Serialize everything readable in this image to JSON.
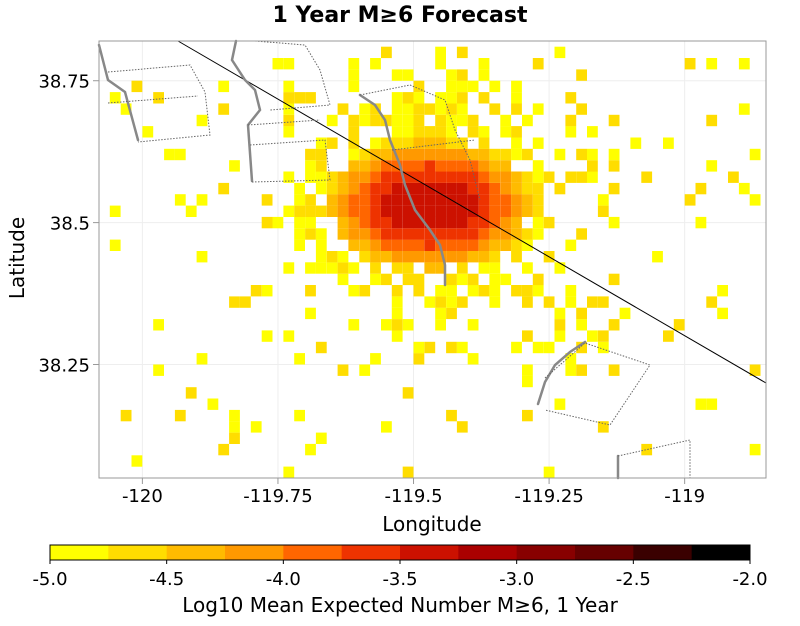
{
  "chart_data": {
    "type": "heatmap",
    "title": "1 Year M≥6 Forecast",
    "xlabel": "Longitude",
    "ylabel": "Latitude",
    "xlim": [
      -120.08,
      -118.85
    ],
    "ylim": [
      38.05,
      38.82
    ],
    "x_ticks": [
      -120,
      -119.75,
      -119.5,
      -119.25,
      -119
    ],
    "x_tick_labels": [
      "-120",
      "-119.75",
      "-119.5",
      "-119.25",
      "-119"
    ],
    "y_ticks": [
      38.25,
      38.5,
      38.75
    ],
    "y_tick_labels": [
      "38.25",
      "38.5",
      "38.75"
    ],
    "grid": true,
    "colorbar": {
      "label": "Log10 Mean Expected Number M≥6, 1 Year",
      "range": [
        -5.0,
        -2.0
      ],
      "ticks": [
        -5.0,
        -4.5,
        -4.0,
        -3.5,
        -3.0,
        -2.5,
        -2.0
      ],
      "tick_labels": [
        "-5.0",
        "-4.5",
        "-4.0",
        "-3.5",
        "-3.0",
        "-2.5",
        "-2.0"
      ],
      "colors": [
        "#ffff00",
        "#ffdd00",
        "#ffbb00",
        "#ff9900",
        "#ff6600",
        "#ee3300",
        "#cc1100",
        "#aa0000",
        "#880000",
        "#660000",
        "#3a0000",
        "#000000"
      ]
    },
    "cell_size_deg": 0.02,
    "hotspot_center": [
      -119.48,
      38.52
    ],
    "peak_value": -3.1,
    "background_value": -5.0
  }
}
